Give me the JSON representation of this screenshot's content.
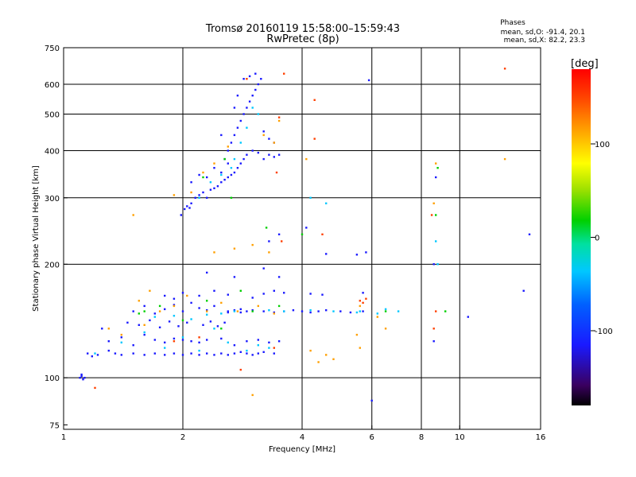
{
  "chart_data": {
    "type": "scatter",
    "title": "Tromsø 20160119 15:58:00–15:59:43",
    "subtitle": "RwPretec (8p)",
    "info": {
      "heading": "Phases",
      "line1": "mean, sd,O: -91.4, 20.1",
      "line2": "mean, sd,X:  82.2, 23.3"
    },
    "xlabel": "Frequency [MHz]",
    "ylabel": "Stationary phase Virtual Height [km]",
    "x_scale": "log",
    "y_scale": "log",
    "xlim": [
      1,
      16
    ],
    "ylim": [
      73,
      750
    ],
    "x_ticks": [
      1,
      2,
      4,
      6,
      8,
      10,
      16
    ],
    "y_ticks": [
      75,
      100,
      200,
      300,
      400,
      500,
      600,
      750
    ],
    "x_grid": [
      2,
      4,
      6,
      8,
      10
    ],
    "y_grid": [
      100,
      200,
      300,
      400,
      500,
      600
    ],
    "grid": true,
    "colorbar": {
      "label": "[deg]",
      "range": [
        -180,
        180
      ],
      "ticks": [
        100,
        0,
        -100
      ],
      "palette": [
        "#000000",
        "#3a0060",
        "#1a1aff",
        "#0060ff",
        "#00c8ff",
        "#00e0a0",
        "#00d000",
        "#9be000",
        "#ffff00",
        "#ffa000",
        "#ff4000",
        "#ff0000"
      ]
    },
    "series": [
      {
        "name": "",
        "phase": -120,
        "points": [
          [
            1.1,
            100
          ],
          [
            1.11,
            101
          ],
          [
            1.12,
            99
          ],
          [
            1.13,
            100
          ],
          [
            1.11,
            102
          ],
          [
            1.15,
            116
          ],
          [
            1.18,
            114
          ],
          [
            1.22,
            115
          ],
          [
            1.3,
            118
          ],
          [
            1.35,
            116
          ],
          [
            1.4,
            115
          ],
          [
            1.5,
            116
          ],
          [
            1.6,
            115
          ],
          [
            1.7,
            116
          ],
          [
            1.8,
            115
          ],
          [
            1.9,
            116
          ],
          [
            2.0,
            115
          ],
          [
            2.1,
            116
          ],
          [
            2.2,
            115
          ],
          [
            2.3,
            116
          ],
          [
            2.4,
            115
          ],
          [
            2.5,
            116
          ],
          [
            2.6,
            115
          ],
          [
            2.7,
            116
          ],
          [
            2.8,
            117
          ],
          [
            2.9,
            116
          ],
          [
            3.0,
            115
          ],
          [
            3.1,
            116
          ],
          [
            3.2,
            117
          ],
          [
            3.4,
            116
          ],
          [
            1.3,
            125
          ],
          [
            1.4,
            128
          ],
          [
            1.5,
            122
          ],
          [
            1.6,
            130
          ],
          [
            1.7,
            126
          ],
          [
            1.8,
            124
          ],
          [
            1.9,
            127
          ],
          [
            2.0,
            126
          ],
          [
            2.1,
            125
          ],
          [
            2.2,
            124
          ],
          [
            2.3,
            126
          ],
          [
            2.5,
            127
          ],
          [
            2.7,
            122
          ],
          [
            2.9,
            125
          ],
          [
            3.1,
            126
          ],
          [
            3.3,
            124
          ],
          [
            3.5,
            125
          ],
          [
            1.25,
            135
          ],
          [
            1.45,
            140
          ],
          [
            1.55,
            138
          ],
          [
            1.65,
            142
          ],
          [
            1.75,
            136
          ],
          [
            1.85,
            141
          ],
          [
            1.95,
            137
          ],
          [
            2.05,
            140
          ],
          [
            2.25,
            138
          ],
          [
            2.35,
            141
          ],
          [
            2.45,
            137
          ],
          [
            2.55,
            140
          ],
          [
            1.5,
            150
          ],
          [
            1.6,
            155
          ],
          [
            1.7,
            148
          ],
          [
            1.8,
            152
          ],
          [
            1.9,
            156
          ],
          [
            2.0,
            150
          ],
          [
            2.1,
            158
          ],
          [
            2.2,
            153
          ],
          [
            2.3,
            151
          ],
          [
            2.4,
            155
          ],
          [
            2.6,
            149
          ],
          [
            2.8,
            152
          ],
          [
            2.6,
            150
          ],
          [
            2.7,
            151
          ],
          [
            2.8,
            149
          ],
          [
            2.9,
            150
          ],
          [
            3.0,
            151
          ],
          [
            3.2,
            150
          ],
          [
            3.4,
            149
          ],
          [
            3.6,
            150
          ],
          [
            3.8,
            151
          ],
          [
            4.0,
            150
          ],
          [
            4.2,
            149
          ],
          [
            4.4,
            150
          ],
          [
            4.6,
            151
          ],
          [
            5.0,
            150
          ],
          [
            5.3,
            149
          ],
          [
            5.7,
            150
          ],
          [
            1.8,
            165
          ],
          [
            1.9,
            162
          ],
          [
            2.0,
            168
          ],
          [
            2.2,
            165
          ],
          [
            2.4,
            170
          ],
          [
            2.6,
            166
          ],
          [
            3.0,
            163
          ],
          [
            3.2,
            167
          ],
          [
            3.4,
            170
          ],
          [
            3.6,
            168
          ],
          [
            4.2,
            167
          ],
          [
            4.5,
            166
          ],
          [
            5.7,
            168
          ],
          [
            2.3,
            190
          ],
          [
            2.7,
            185
          ],
          [
            3.2,
            195
          ],
          [
            3.5,
            185
          ],
          [
            4.6,
            213
          ],
          [
            5.5,
            212
          ],
          [
            5.8,
            215
          ],
          [
            3.5,
            240
          ],
          [
            4.1,
            250
          ],
          [
            3.3,
            230
          ],
          [
            1.98,
            270
          ],
          [
            2.02,
            280
          ],
          [
            2.05,
            285
          ],
          [
            2.08,
            282
          ],
          [
            2.1,
            290
          ],
          [
            2.15,
            300
          ],
          [
            2.2,
            305
          ],
          [
            2.25,
            310
          ],
          [
            2.3,
            300
          ],
          [
            2.35,
            315
          ],
          [
            2.4,
            318
          ],
          [
            2.45,
            322
          ],
          [
            2.5,
            330
          ],
          [
            2.55,
            335
          ],
          [
            2.6,
            340
          ],
          [
            2.65,
            345
          ],
          [
            2.7,
            350
          ],
          [
            2.75,
            360
          ],
          [
            2.8,
            370
          ],
          [
            2.85,
            380
          ],
          [
            2.9,
            390
          ],
          [
            3.0,
            400
          ],
          [
            3.1,
            395
          ],
          [
            3.2,
            380
          ],
          [
            3.3,
            390
          ],
          [
            3.4,
            385
          ],
          [
            3.5,
            390
          ],
          [
            2.55,
            380
          ],
          [
            2.6,
            400
          ],
          [
            2.65,
            420
          ],
          [
            2.7,
            440
          ],
          [
            2.75,
            460
          ],
          [
            2.8,
            480
          ],
          [
            2.85,
            500
          ],
          [
            2.9,
            520
          ],
          [
            2.95,
            540
          ],
          [
            3.0,
            560
          ],
          [
            3.05,
            580
          ],
          [
            3.1,
            600
          ],
          [
            2.85,
            620
          ],
          [
            2.95,
            630
          ],
          [
            3.05,
            640
          ],
          [
            3.15,
            620
          ],
          [
            2.75,
            560
          ],
          [
            2.7,
            520
          ],
          [
            3.2,
            450
          ],
          [
            3.3,
            430
          ],
          [
            3.4,
            420
          ],
          [
            2.5,
            440
          ],
          [
            2.4,
            360
          ],
          [
            2.5,
            350
          ],
          [
            2.3,
            340
          ],
          [
            2.2,
            345
          ],
          [
            2.1,
            330
          ],
          [
            2.6,
            370
          ],
          [
            5.9,
            615
          ],
          [
            6.0,
            87
          ],
          [
            8.7,
            340
          ],
          [
            8.6,
            200
          ],
          [
            15.0,
            240
          ],
          [
            14.5,
            170
          ],
          [
            8.6,
            125
          ],
          [
            10.5,
            145
          ]
        ]
      },
      {
        "name": "",
        "phase": -60,
        "points": [
          [
            1.2,
            116
          ],
          [
            1.4,
            124
          ],
          [
            1.6,
            132
          ],
          [
            1.8,
            120
          ],
          [
            2.0,
            128
          ],
          [
            2.2,
            118
          ],
          [
            2.4,
            135
          ],
          [
            2.6,
            124
          ],
          [
            2.9,
            118
          ],
          [
            3.1,
            122
          ],
          [
            3.3,
            120
          ],
          [
            1.7,
            145
          ],
          [
            1.9,
            146
          ],
          [
            2.1,
            143
          ],
          [
            2.3,
            147
          ],
          [
            2.5,
            148
          ],
          [
            2.7,
            150
          ],
          [
            3.3,
            151
          ],
          [
            3.6,
            150
          ],
          [
            4.2,
            151
          ],
          [
            4.8,
            150
          ],
          [
            5.5,
            149
          ],
          [
            2.2,
            300
          ],
          [
            2.35,
            330
          ],
          [
            2.5,
            345
          ],
          [
            2.65,
            360
          ],
          [
            2.8,
            420
          ],
          [
            2.9,
            460
          ],
          [
            3.0,
            520
          ],
          [
            3.1,
            500
          ],
          [
            2.7,
            380
          ],
          [
            5.6,
            150
          ],
          [
            6.2,
            148
          ],
          [
            6.5,
            152
          ],
          [
            7.0,
            150
          ],
          [
            4.6,
            290
          ],
          [
            4.2,
            300
          ],
          [
            8.7,
            230
          ],
          [
            8.8,
            200
          ]
        ]
      },
      {
        "name": "",
        "phase": 0,
        "points": [
          [
            1.6,
            150
          ],
          [
            1.75,
            155
          ],
          [
            2.0,
            142
          ],
          [
            2.3,
            160
          ],
          [
            3.0,
            150
          ],
          [
            3.5,
            155
          ],
          [
            2.5,
            135
          ],
          [
            1.55,
            148
          ],
          [
            4.0,
            240
          ],
          [
            3.25,
            250
          ],
          [
            2.55,
            380
          ],
          [
            2.65,
            300
          ],
          [
            2.25,
            340
          ],
          [
            8.8,
            360
          ],
          [
            9.2,
            150
          ],
          [
            8.7,
            270
          ],
          [
            6.5,
            150
          ],
          [
            2.8,
            170
          ]
        ]
      },
      {
        "name": "",
        "phase": 110,
        "points": [
          [
            1.55,
            160
          ],
          [
            1.65,
            170
          ],
          [
            1.75,
            150
          ],
          [
            1.9,
            155
          ],
          [
            2.05,
            165
          ],
          [
            2.3,
            150
          ],
          [
            2.5,
            158
          ],
          [
            2.75,
            150
          ],
          [
            3.1,
            155
          ],
          [
            3.4,
            148
          ],
          [
            1.6,
            138
          ],
          [
            1.3,
            135
          ],
          [
            1.4,
            130
          ],
          [
            4.6,
            115
          ],
          [
            4.8,
            112
          ],
          [
            4.4,
            110
          ],
          [
            4.2,
            118
          ],
          [
            5.5,
            130
          ],
          [
            5.6,
            120
          ],
          [
            5.6,
            155
          ],
          [
            6.2,
            145
          ],
          [
            6.5,
            135
          ],
          [
            8.7,
            370
          ],
          [
            8.6,
            290
          ],
          [
            2.1,
            310
          ],
          [
            2.25,
            350
          ],
          [
            2.4,
            370
          ],
          [
            2.6,
            410
          ],
          [
            3.4,
            420
          ],
          [
            3.2,
            440
          ],
          [
            3.5,
            480
          ],
          [
            13.0,
            380
          ],
          [
            1.5,
            270
          ],
          [
            1.9,
            305
          ],
          [
            2.7,
            220
          ],
          [
            3.0,
            225
          ],
          [
            3.3,
            215
          ],
          [
            2.4,
            215
          ],
          [
            3.0,
            90
          ],
          [
            4.1,
            380
          ]
        ]
      },
      {
        "name": "",
        "phase": 160,
        "points": [
          [
            1.2,
            94
          ],
          [
            2.8,
            105
          ],
          [
            3.4,
            120
          ],
          [
            4.3,
            430
          ],
          [
            4.3,
            545
          ],
          [
            4.5,
            240
          ],
          [
            5.6,
            160
          ],
          [
            5.7,
            158
          ],
          [
            5.8,
            162
          ],
          [
            8.5,
            270
          ],
          [
            8.7,
            150
          ],
          [
            8.6,
            135
          ],
          [
            3.6,
            640
          ],
          [
            3.5,
            490
          ],
          [
            2.9,
            620
          ],
          [
            1.9,
            125
          ],
          [
            2.2,
            128
          ],
          [
            13.0,
            660
          ],
          [
            3.45,
            350
          ],
          [
            3.55,
            230
          ]
        ]
      }
    ]
  }
}
